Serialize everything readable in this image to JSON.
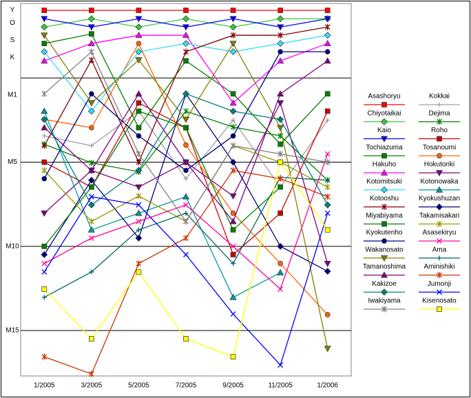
{
  "chart_data": {
    "type": "line",
    "y_inverted": true,
    "categories": [
      "1/2005",
      "3/2005",
      "5/2005",
      "7/2005",
      "9/2005",
      "11/2005",
      "1/2006"
    ],
    "ylim": [
      -4.43,
      17.7
    ],
    "yticks": [
      {
        "value": -4.02,
        "label": "Y"
      },
      {
        "value": -3.28,
        "label": "O"
      },
      {
        "value": -2.25,
        "label": "S"
      },
      {
        "value": -1.23,
        "label": "K"
      },
      {
        "value": 1,
        "label": "M1"
      },
      {
        "value": 5,
        "label": "M5"
      },
      {
        "value": 10,
        "label": "M10"
      },
      {
        "value": 15,
        "label": "M15"
      }
    ],
    "grid_lines": [
      0,
      5,
      10,
      15
    ],
    "series": [
      {
        "name": "Asashoryu",
        "color": "#ff0000",
        "marker": "square",
        "values": [
          -4.02,
          -4.02,
          -4.02,
          -4.02,
          -4.02,
          -4.02,
          -4.02
        ]
      },
      {
        "name": "Kokkai",
        "color": "#a0a0a0",
        "marker": "plus",
        "values": [
          3.44,
          4.02,
          1.97,
          5.98,
          2.5,
          6.48,
          2.5
        ]
      },
      {
        "name": "Chiyotaikai",
        "color": "#33cc33",
        "marker": "diamond",
        "values": [
          -3.03,
          -3.52,
          -3.03,
          -3.52,
          -3.03,
          -3.52,
          -3.52
        ]
      },
      {
        "name": "Dejima",
        "color": "#008000",
        "marker": "star",
        "values": [
          3.93,
          5.04,
          5.57,
          1.97,
          2.91,
          3.44,
          6.07
        ]
      },
      {
        "name": "Kaio",
        "color": "#0000ff",
        "marker": "tri-down",
        "values": [
          -3.52,
          -3.03,
          -3.52,
          -3.03,
          -3.52,
          -3.03,
          -3.52
        ]
      },
      {
        "name": "Roho",
        "color": "#cc0000",
        "marker": "square",
        "values": [
          5.0,
          6.48,
          1.48,
          2.95,
          10.49,
          8.03,
          1.97
        ]
      },
      {
        "name": "Tochiazuma",
        "color": "#008000",
        "marker": "square",
        "values": [
          -2.05,
          -2.62,
          2.95,
          -1.02,
          0.94,
          3.93,
          0.94
        ]
      },
      {
        "name": "Tosanoumi",
        "color": "#ff6600",
        "marker": "circle",
        "values": [
          2.46,
          2.95,
          -2.05,
          3.98,
          8.03,
          11.02,
          14.06
        ]
      },
      {
        "name": "Hakuho",
        "color": "#ff00ff",
        "marker": "tri-up",
        "values": [
          -1.02,
          -2.05,
          -2.54,
          -2.54,
          1.48,
          -1.02,
          -2.05
        ]
      },
      {
        "name": "Hokutoriki",
        "color": "#800080",
        "marker": "tri-down",
        "values": [
          8.03,
          5.49,
          6.48,
          5.0,
          7.01,
          1.48,
          11.02
        ]
      },
      {
        "name": "Kotomitsuki",
        "color": "#33ddff",
        "marker": "diamond",
        "values": [
          -1.56,
          1.97,
          -1.56,
          -2.05,
          -1.56,
          -2.05,
          -2.54
        ]
      },
      {
        "name": "Kotonowaka",
        "color": "#009999",
        "marker": "tri-up",
        "values": [
          1.97,
          9.02,
          8.03,
          7.05,
          13.03,
          11.56,
          null
        ]
      },
      {
        "name": "Kotooshu",
        "color": "#800000",
        "marker": "star",
        "values": [
          4.02,
          -1.07,
          5.0,
          -1.56,
          -2.54,
          -2.54,
          -3.03
        ]
      },
      {
        "name": "Kyokushuzan",
        "color": "#000080",
        "marker": "diamond",
        "values": [
          10.49,
          6.07,
          9.51,
          0.94,
          5.0,
          10.0,
          11.48
        ]
      },
      {
        "name": "Miyabiyama",
        "color": "#008000",
        "marker": "square",
        "values": [
          10.0,
          6.48,
          1.97,
          2.95,
          9.02,
          6.48,
          null
        ]
      },
      {
        "name": "Takamisakari",
        "color": "#999900",
        "marker": "star",
        "values": [
          5.49,
          8.52,
          7.01,
          8.52,
          4.02,
          5.0,
          6.48
        ]
      },
      {
        "name": "Kyokutenho",
        "color": "#000080",
        "marker": "circle",
        "values": [
          5.98,
          0.94,
          3.44,
          5.49,
          3.44,
          -1.56,
          -1.56
        ]
      },
      {
        "name": "Asasekiryu",
        "color": "#ff0099",
        "marker": "x",
        "values": [
          11.02,
          9.51,
          8.52,
          7.54,
          10.0,
          12.54,
          4.51
        ]
      },
      {
        "name": "Wakanosato",
        "color": "#808000",
        "marker": "tri-down",
        "values": [
          -2.54,
          1.48,
          -1.07,
          2.46,
          -2.05,
          2.95,
          16.07
        ]
      },
      {
        "name": "Ama",
        "color": "#006666",
        "marker": "plus",
        "values": [
          13.03,
          11.52,
          9.02,
          8.03,
          11.02,
          5.9,
          6.07
        ]
      },
      {
        "name": "Tamanoshima",
        "color": "#800080",
        "marker": "tri-up",
        "values": [
          2.95,
          5.49,
          0.94,
          5.0,
          8.52,
          0.94,
          -1.02
        ]
      },
      {
        "name": "Aminishiki",
        "color": "#cc3300",
        "marker": "star",
        "values": [
          16.56,
          17.58,
          11.02,
          9.51,
          5.49,
          5.98,
          7.05
        ]
      },
      {
        "name": "Kakizoe",
        "color": "#008080",
        "marker": "diamond",
        "values": [
          2.46,
          7.54,
          5.49,
          0.94,
          1.97,
          2.46,
          7.54
        ]
      },
      {
        "name": "Jumonji",
        "color": "#0000ff",
        "marker": "x",
        "values": [
          11.52,
          7.05,
          7.54,
          10.49,
          14.02,
          17.05,
          8.03
        ]
      },
      {
        "name": "Iwakiyama",
        "color": "#808080",
        "marker": "star",
        "values": [
          0.94,
          -1.56,
          4.51,
          8.52,
          4.02,
          4.51,
          5.0
        ]
      },
      {
        "name": "Kisenosato",
        "color": "#ffff00",
        "marker": "square",
        "values": [
          12.54,
          15.49,
          11.52,
          15.49,
          16.56,
          5.0,
          9.02
        ]
      }
    ]
  }
}
